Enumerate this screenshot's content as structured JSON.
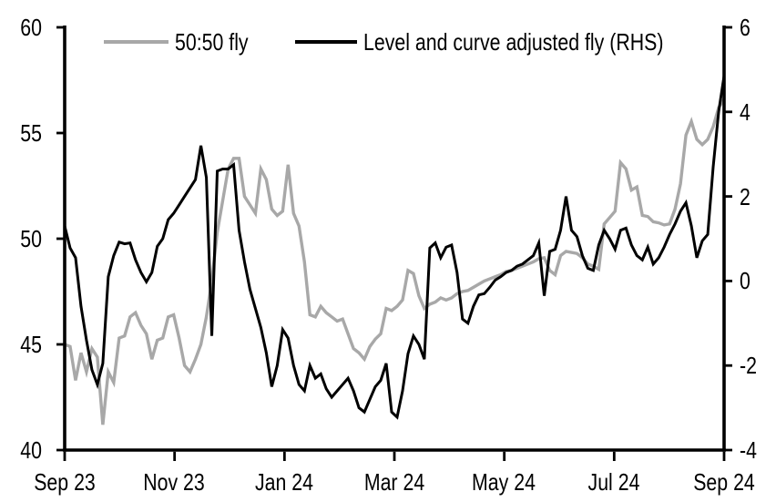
{
  "legend": {
    "items": [
      {
        "label": "50:50 fly",
        "color": "#a8a8a8"
      },
      {
        "label": "Level and curve adjusted fly (RHS)",
        "color": "#000000"
      }
    ]
  },
  "axes": {
    "left": {
      "tick_labels": [
        "60",
        "55",
        "50",
        "45",
        "40"
      ]
    },
    "right": {
      "tick_labels": [
        "6",
        "4",
        "2",
        "0",
        "-2",
        "-4"
      ]
    },
    "x": {
      "tick_labels": [
        "Sep 23",
        "Nov 23",
        "Jan 24",
        "Mar 24",
        "May 24",
        "Jul 24",
        "Sep 24"
      ]
    }
  },
  "chart_data": {
    "type": "line",
    "title": "",
    "x_start": "Sep 2023",
    "x_end": "Sep 2024",
    "x_tick_labels": [
      "Sep 23",
      "Nov 23",
      "Jan 24",
      "Mar 24",
      "May 24",
      "Jul 24",
      "Sep 24"
    ],
    "left_axis": {
      "min": 40,
      "max": 60,
      "ticks": [
        60,
        55,
        50,
        45,
        40
      ]
    },
    "right_axis": {
      "min": -4,
      "max": 6,
      "ticks": [
        6,
        4,
        2,
        0,
        -2,
        -4
      ]
    },
    "grid": false,
    "legend_position": "top-center",
    "series": [
      {
        "name": "50:50 fly",
        "axis": "left",
        "color": "#a8a8a8",
        "values": [
          45.0,
          44.9,
          43.3,
          44.6,
          43.7,
          44.8,
          44.4,
          41.2,
          43.7,
          43.2,
          45.3,
          45.4,
          46.3,
          46.5,
          45.9,
          45.5,
          44.3,
          45.2,
          45.3,
          46.3,
          46.4,
          45.3,
          44.0,
          43.7,
          44.3,
          45.0,
          46.3,
          48.0,
          50.3,
          51.8,
          53.3,
          53.8,
          53.8,
          52.0,
          51.6,
          51.2,
          53.3,
          52.8,
          51.4,
          51.1,
          51.3,
          53.5,
          51.2,
          50.6,
          48.9,
          46.4,
          46.3,
          46.8,
          46.5,
          46.3,
          46.1,
          46.2,
          45.5,
          44.8,
          44.6,
          44.3,
          44.9,
          45.25,
          45.5,
          46.7,
          46.6,
          46.8,
          47.1,
          48.5,
          48.35,
          47.3,
          46.7,
          46.9,
          47.0,
          47.2,
          47.1,
          47.2,
          47.4,
          47.5,
          47.55,
          47.7,
          47.85,
          48.0,
          48.1,
          48.2,
          48.3,
          48.45,
          48.5,
          48.6,
          48.7,
          48.8,
          48.9,
          49.05,
          49.1,
          48.5,
          48.3,
          49.2,
          49.4,
          49.35,
          49.3,
          49.1,
          48.8,
          48.7,
          48.55,
          50.7,
          51.0,
          51.3,
          53.6,
          53.3,
          52.3,
          52.45,
          51.1,
          51.05,
          50.8,
          50.75,
          50.65,
          50.7,
          51.4,
          52.6,
          54.9,
          55.55,
          54.7,
          54.45,
          54.7,
          55.3,
          56.2,
          56.6
        ]
      },
      {
        "name": "Level and curve adjusted fly (RHS)",
        "axis": "right",
        "color": "#000000",
        "values": [
          1.3,
          0.78,
          0.55,
          -0.6,
          -1.4,
          -2.1,
          -2.45,
          -1.95,
          0.1,
          0.6,
          0.92,
          0.88,
          0.9,
          0.5,
          0.2,
          -0.02,
          0.2,
          0.82,
          1.0,
          1.45,
          1.6,
          1.8,
          2.0,
          2.2,
          2.4,
          3.2,
          2.45,
          -1.3,
          2.6,
          2.65,
          2.65,
          2.75,
          1.2,
          0.45,
          -0.2,
          -0.65,
          -1.1,
          -1.7,
          -2.5,
          -2.0,
          -1.15,
          -1.35,
          -2.0,
          -2.45,
          -2.6,
          -2.0,
          -2.3,
          -2.2,
          -2.55,
          -2.75,
          -2.6,
          -2.45,
          -2.3,
          -2.6,
          -3.0,
          -3.1,
          -2.8,
          -2.5,
          -2.35,
          -1.95,
          -3.1,
          -3.22,
          -2.6,
          -1.72,
          -1.3,
          -1.5,
          -1.85,
          0.78,
          0.9,
          0.55,
          0.8,
          0.85,
          0.2,
          -0.9,
          -1.0,
          -0.6,
          -0.33,
          -0.3,
          -0.15,
          0.02,
          0.1,
          0.2,
          0.25,
          0.35,
          0.4,
          0.5,
          0.6,
          0.9,
          -0.35,
          0.7,
          0.75,
          1.2,
          2.0,
          1.2,
          1.05,
          0.6,
          0.3,
          0.25,
          0.85,
          1.2,
          1.0,
          0.75,
          1.2,
          1.25,
          0.85,
          0.6,
          0.5,
          0.8,
          0.4,
          0.55,
          0.8,
          1.1,
          1.35,
          1.65,
          1.85,
          1.3,
          0.55,
          0.95,
          1.1,
          2.7,
          4.0,
          4.85
        ]
      }
    ]
  }
}
